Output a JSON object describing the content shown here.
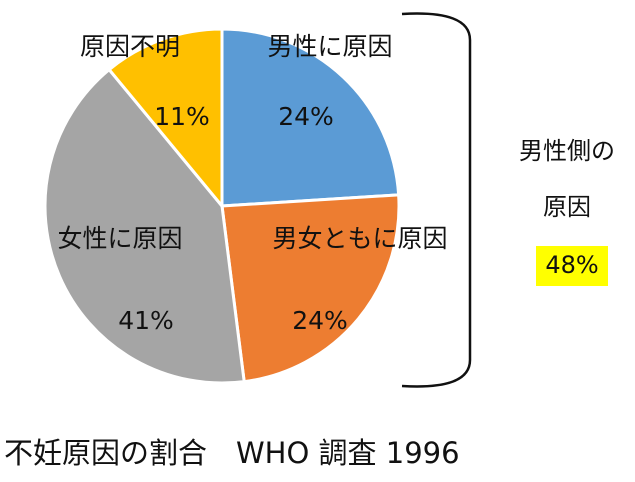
{
  "chart_data": {
    "type": "pie",
    "title": "不妊原因の割合　WHO 調査 1996",
    "categories": [
      "男性に原因",
      "男女ともに原因",
      "女性に原因",
      "原因不明"
    ],
    "values": [
      24,
      24,
      41,
      11
    ],
    "value_labels": [
      "24%",
      "24%",
      "41%",
      "11%"
    ],
    "colors": [
      "#5b9bd5",
      "#ed7d31",
      "#a5a5a5",
      "#ffc000"
    ],
    "annotation": {
      "lines": [
        "男性側の",
        "原因"
      ],
      "value": "48%",
      "highlight": "#ffff00"
    }
  }
}
